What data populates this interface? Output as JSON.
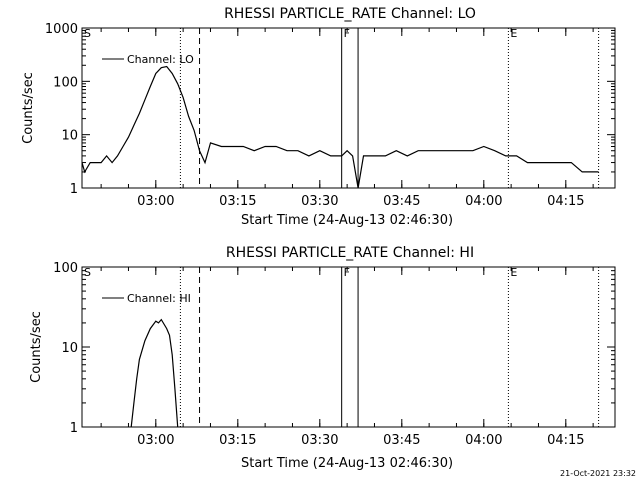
{
  "footer": {
    "timestamp": "21-Oct-2021 23:32"
  },
  "chart_data": [
    {
      "type": "line",
      "title": "RHESSI PARTICLE_RATE Channel: LO",
      "xlabel": "Start Time (24-Aug-13 02:46:30)",
      "ylabel": "Counts/sec",
      "yscale": "log",
      "ylim": [
        1,
        1000
      ],
      "y_ticks": [
        "1",
        "10",
        "100",
        "1000"
      ],
      "x_ticks": [
        "03:00",
        "03:15",
        "03:30",
        "03:45",
        "04:00",
        "04:15"
      ],
      "legend": "Channel: LO",
      "markers": [
        {
          "label": "S",
          "time": "02:46:30",
          "style": "none"
        },
        {
          "label": "",
          "time": "03:04:30",
          "style": "dotted"
        },
        {
          "label": "",
          "time": "03:08:00",
          "style": "dashed"
        },
        {
          "label": "F",
          "time": "03:34:00",
          "style": "solid"
        },
        {
          "label": "",
          "time": "03:37:00",
          "style": "solid"
        },
        {
          "label": "E",
          "time": "04:04:30",
          "style": "dotted"
        },
        {
          "label": "",
          "time": "04:21:00",
          "style": "dotted"
        }
      ],
      "series": [
        {
          "x": [
            "02:46:30",
            "02:47:00",
            "02:48:00",
            "02:49:00",
            "02:50:00",
            "02:51:00",
            "02:52:00",
            "02:53:00",
            "02:54:00",
            "02:55:00",
            "02:56:00",
            "02:57:00",
            "02:58:00",
            "02:59:00",
            "03:00:00",
            "03:01:00",
            "03:02:00",
            "03:03:00",
            "03:04:00",
            "03:05:00",
            "03:06:00",
            "03:07:00",
            "03:08:00",
            "03:09:00",
            "03:10:00",
            "03:12:00",
            "03:14:00",
            "03:16:00",
            "03:18:00",
            "03:20:00",
            "03:22:00",
            "03:24:00",
            "03:26:00",
            "03:28:00",
            "03:30:00",
            "03:32:00",
            "03:34:00",
            "03:35:00",
            "03:36:00",
            "03:37:00",
            "03:38:00",
            "03:40:00",
            "03:42:00",
            "03:44:00",
            "03:46:00",
            "03:48:00",
            "03:50:00",
            "03:52:00",
            "03:54:00",
            "03:56:00",
            "03:58:00",
            "04:00:00",
            "04:02:00",
            "04:04:00",
            "04:06:00",
            "04:08:00",
            "04:10:00",
            "04:12:00",
            "04:14:00",
            "04:16:00",
            "04:18:00",
            "04:20:00",
            "04:21:00"
          ],
          "y": [
            3,
            2,
            3,
            3,
            3,
            4,
            3,
            4,
            6,
            9,
            15,
            25,
            45,
            80,
            140,
            180,
            190,
            140,
            90,
            50,
            22,
            12,
            5,
            3,
            7,
            6,
            6,
            6,
            5,
            6,
            6,
            5,
            5,
            4,
            5,
            4,
            4,
            5,
            4,
            1,
            4,
            4,
            4,
            5,
            4,
            5,
            5,
            5,
            5,
            5,
            5,
            6,
            5,
            4,
            4,
            3,
            3,
            3,
            3,
            3,
            2,
            2,
            2
          ]
        }
      ]
    },
    {
      "type": "line",
      "title": "RHESSI PARTICLE_RATE Channel: HI",
      "xlabel": "Start Time (24-Aug-13 02:46:30)",
      "ylabel": "Counts/sec",
      "yscale": "log",
      "ylim": [
        1,
        100
      ],
      "y_ticks": [
        "1",
        "10",
        "100"
      ],
      "x_ticks": [
        "03:00",
        "03:15",
        "03:30",
        "03:45",
        "04:00",
        "04:15"
      ],
      "legend": "Channel: HI",
      "markers": [
        {
          "label": "S",
          "time": "02:46:30",
          "style": "none"
        },
        {
          "label": "",
          "time": "03:04:30",
          "style": "dotted"
        },
        {
          "label": "",
          "time": "03:08:00",
          "style": "dashed"
        },
        {
          "label": "F",
          "time": "03:34:00",
          "style": "solid"
        },
        {
          "label": "",
          "time": "03:37:00",
          "style": "solid"
        },
        {
          "label": "E",
          "time": "04:04:30",
          "style": "dotted"
        },
        {
          "label": "",
          "time": "04:21:00",
          "style": "dotted"
        }
      ],
      "series": [
        {
          "x": [
            "02:55:30",
            "02:56:00",
            "02:56:30",
            "02:57:00",
            "02:58:00",
            "02:59:00",
            "03:00:00",
            "03:00:30",
            "03:01:00",
            "03:02:00",
            "03:02:30",
            "03:03:00",
            "03:03:30",
            "03:04:00"
          ],
          "y": [
            1,
            2,
            4,
            7,
            12,
            17,
            21,
            20,
            22,
            17,
            14,
            8,
            3,
            1
          ]
        }
      ]
    }
  ]
}
